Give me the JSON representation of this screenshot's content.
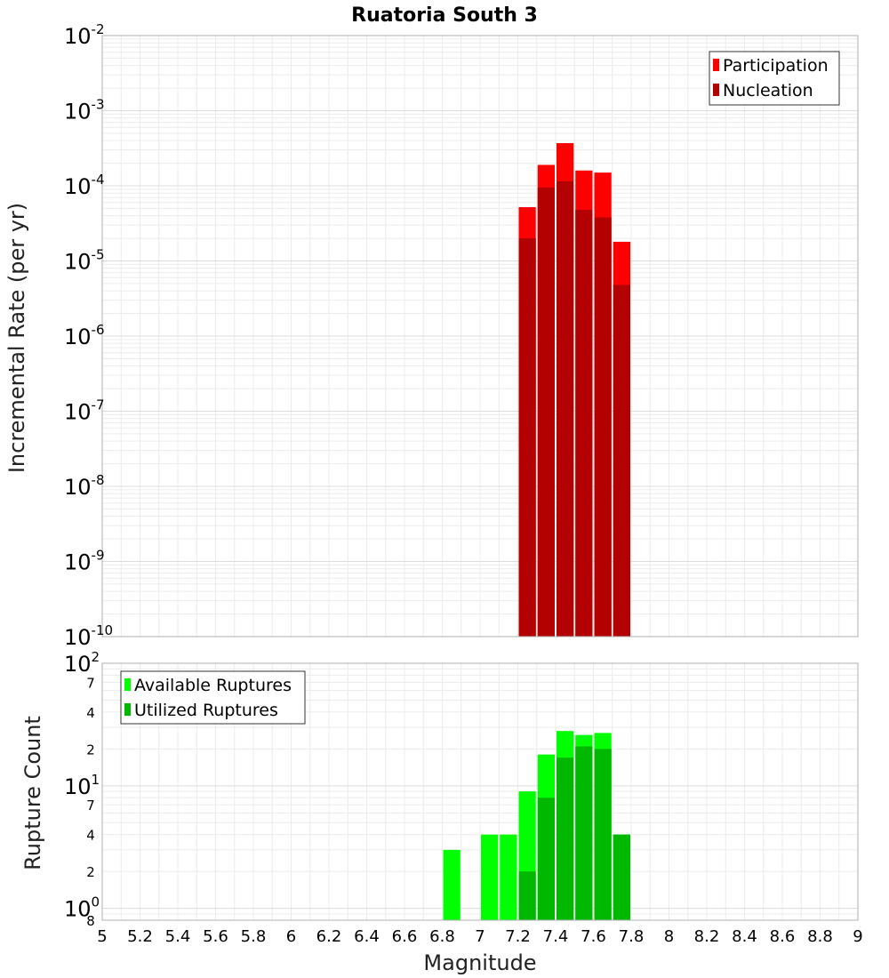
{
  "chart_data": [
    {
      "type": "bar",
      "title": "Ruatoria South 3",
      "xlabel": "",
      "ylabel": "Incremental Rate (per yr)",
      "yscale": "log",
      "ylim": [
        1e-10,
        0.01
      ],
      "xlim": [
        5,
        9
      ],
      "grid": true,
      "legend_position": "top-right",
      "series": [
        {
          "name": "Participation",
          "color": "#ff0000",
          "x": [
            7.25,
            7.35,
            7.45,
            7.55,
            7.65,
            7.75
          ],
          "values": [
            5.2e-05,
            0.00019,
            0.00037,
            0.00016,
            0.00015,
            1.8e-05
          ]
        },
        {
          "name": "Nucleation",
          "color": "#b30000",
          "x": [
            7.25,
            7.35,
            7.45,
            7.55,
            7.65,
            7.75
          ],
          "values": [
            2e-05,
            9.5e-05,
            0.000115,
            4.8e-05,
            3.8e-05,
            4.8e-06
          ]
        }
      ]
    },
    {
      "type": "bar",
      "title": "",
      "xlabel": "Magnitude",
      "ylabel": "Rupture Count",
      "yscale": "log",
      "ylim": [
        0.8,
        100
      ],
      "xlim": [
        5,
        9
      ],
      "grid": true,
      "legend_position": "top-left",
      "series": [
        {
          "name": "Available Ruptures",
          "color": "#00ff00",
          "x": [
            6.85,
            7.05,
            7.15,
            7.25,
            7.35,
            7.45,
            7.55,
            7.65,
            7.75
          ],
          "values": [
            3,
            4,
            4,
            9,
            18,
            28,
            26,
            27,
            4
          ]
        },
        {
          "name": "Utilized Ruptures",
          "color": "#00b800",
          "x": [
            7.25,
            7.35,
            7.45,
            7.55,
            7.65,
            7.75
          ],
          "values": [
            2,
            8,
            17,
            21,
            20,
            4
          ]
        }
      ]
    }
  ],
  "x_tick_labels": [
    "5",
    "5.2",
    "5.4",
    "5.6",
    "5.8",
    "6",
    "6.2",
    "6.4",
    "6.6",
    "6.8",
    "7",
    "7.2",
    "7.4",
    "7.6",
    "7.8",
    "8",
    "8.2",
    "8.4",
    "8.6",
    "8.8",
    "9"
  ],
  "x_tick_values": [
    5,
    5.2,
    5.4,
    5.6,
    5.8,
    6,
    6.2,
    6.4,
    6.6,
    6.8,
    7,
    7.2,
    7.4,
    7.6,
    7.8,
    8,
    8.2,
    8.4,
    8.6,
    8.8,
    9
  ],
  "top_y_ticks": [
    {
      "value": 0.01,
      "base": "10",
      "exp": "-2"
    },
    {
      "value": 0.001,
      "base": "10",
      "exp": "-3"
    },
    {
      "value": 0.0001,
      "base": "10",
      "exp": "-4"
    },
    {
      "value": 1e-05,
      "base": "10",
      "exp": "-5"
    },
    {
      "value": 1e-06,
      "base": "10",
      "exp": "-6"
    },
    {
      "value": 1e-07,
      "base": "10",
      "exp": "-7"
    },
    {
      "value": 1e-08,
      "base": "10",
      "exp": "-8"
    },
    {
      "value": 1e-09,
      "base": "10",
      "exp": "-9"
    },
    {
      "value": 1e-10,
      "base": "10",
      "exp": "-10"
    }
  ],
  "bottom_y_major": [
    {
      "value": 100,
      "base": "10",
      "exp": "2"
    },
    {
      "value": 10,
      "base": "10",
      "exp": "1"
    },
    {
      "value": 1,
      "base": "10",
      "exp": "0"
    }
  ],
  "bottom_y_minor": [
    {
      "value": 70,
      "label": "7"
    },
    {
      "value": 40,
      "label": "4"
    },
    {
      "value": 20,
      "label": "2"
    },
    {
      "value": 7,
      "label": "7"
    },
    {
      "value": 4,
      "label": "4"
    },
    {
      "value": 2,
      "label": "2"
    },
    {
      "value": 0.8,
      "label": "8"
    }
  ]
}
